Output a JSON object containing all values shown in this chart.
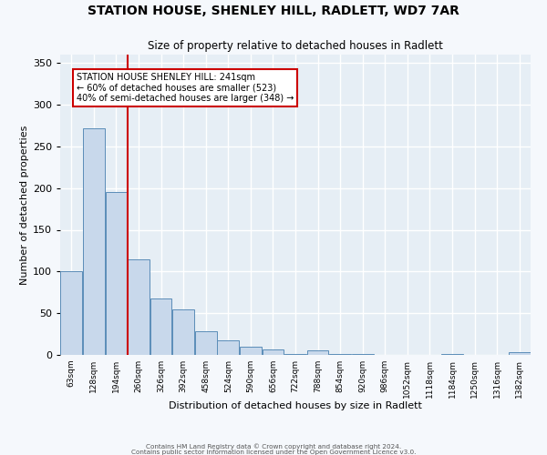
{
  "title1": "STATION HOUSE, SHENLEY HILL, RADLETT, WD7 7AR",
  "title2": "Size of property relative to detached houses in Radlett",
  "xlabel": "Distribution of detached houses by size in Radlett",
  "ylabel": "Number of detached properties",
  "bin_labels": [
    "63sqm",
    "128sqm",
    "194sqm",
    "260sqm",
    "326sqm",
    "392sqm",
    "458sqm",
    "524sqm",
    "590sqm",
    "656sqm",
    "722sqm",
    "788sqm",
    "854sqm",
    "920sqm",
    "986sqm",
    "1052sqm",
    "1118sqm",
    "1184sqm",
    "1250sqm",
    "1316sqm",
    "1382sqm"
  ],
  "bar_heights": [
    100,
    272,
    195,
    115,
    68,
    55,
    28,
    17,
    10,
    7,
    1,
    5,
    1,
    1,
    0,
    0,
    0,
    1,
    0,
    0,
    3
  ],
  "bar_color": "#c8d8eb",
  "bar_edge_color": "#5b8db8",
  "bg_color": "#e6eef5",
  "grid_color": "#ffffff",
  "fig_bg_color": "#f5f8fc",
  "vline_x_index": 2.93,
  "annotation_title": "STATION HOUSE SHENLEY HILL: 241sqm",
  "annotation_line1": "← 60% of detached houses are smaller (523)",
  "annotation_line2": "40% of semi-detached houses are larger (348) →",
  "footer1": "Contains HM Land Registry data © Crown copyright and database right 2024.",
  "footer2": "Contains public sector information licensed under the Open Government Licence v3.0.",
  "ylim_max": 360,
  "yticks": [
    0,
    50,
    100,
    150,
    200,
    250,
    300,
    350
  ]
}
